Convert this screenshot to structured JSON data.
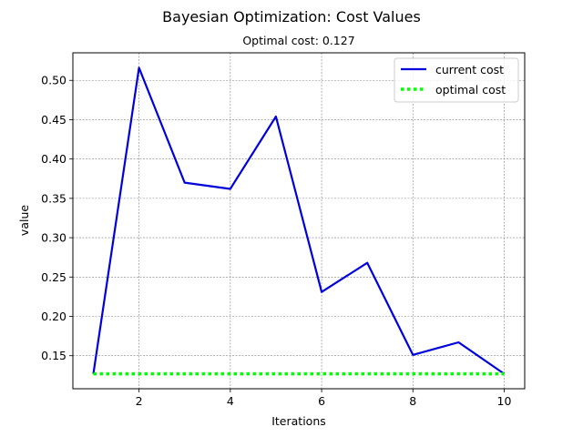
{
  "chart_data": {
    "type": "line",
    "title": "Bayesian Optimization: Cost Values",
    "subtitle": "Optimal cost: 0.127",
    "xlabel": "Iterations",
    "ylabel": "value",
    "xlim": [
      0.55,
      10.45
    ],
    "ylim": [
      0.108,
      0.535
    ],
    "xticks": [
      2,
      4,
      6,
      8,
      10
    ],
    "yticks": [
      0.15,
      0.2,
      0.25,
      0.3,
      0.35,
      0.4,
      0.45,
      0.5
    ],
    "grid": true,
    "legend_position": "top-right",
    "x": [
      1,
      2,
      3,
      4,
      5,
      6,
      7,
      8,
      9,
      10
    ],
    "series": [
      {
        "name": "current cost",
        "color": "#0000dd",
        "style": "solid",
        "values": [
          0.127,
          0.516,
          0.37,
          0.362,
          0.454,
          0.231,
          0.268,
          0.151,
          0.167,
          0.127
        ]
      },
      {
        "name": "optimal cost",
        "color": "#00ff00",
        "style": "dotted",
        "values": [
          0.127,
          0.127,
          0.127,
          0.127,
          0.127,
          0.127,
          0.127,
          0.127,
          0.127,
          0.127
        ]
      }
    ]
  }
}
